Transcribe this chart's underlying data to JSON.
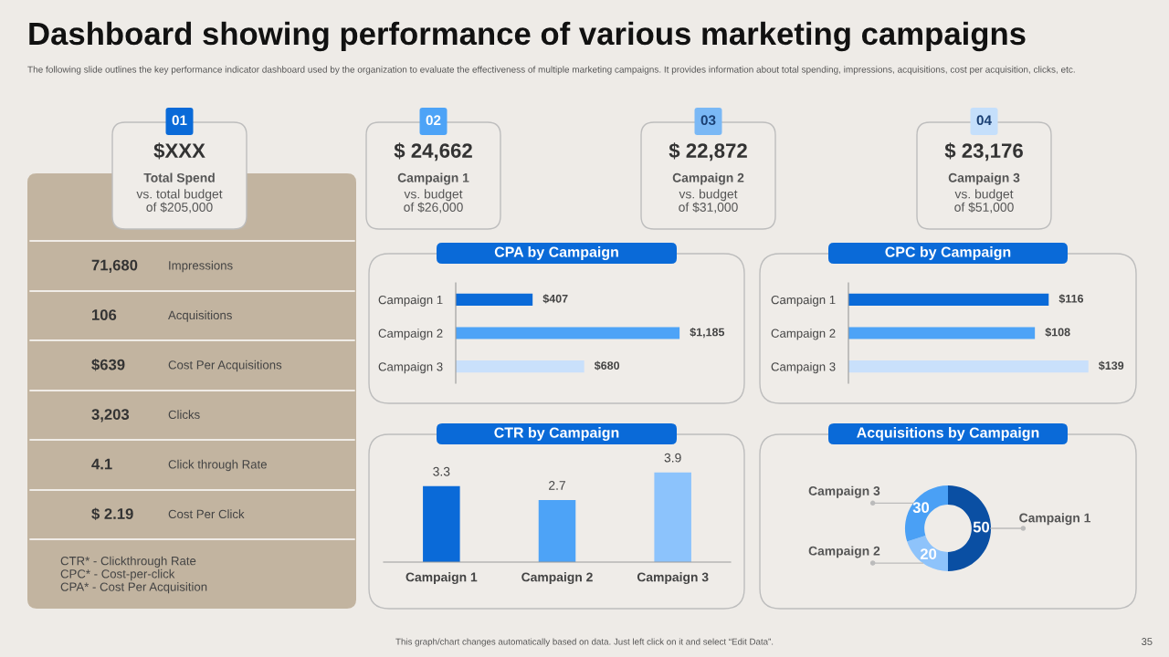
{
  "chart_data": [
    {
      "type": "other",
      "title": "Dashboard showing performance of various marketing campaigns",
      "subtitle": "The following slide outlines the key performance indicator dashboard used by the organization to evaluate the effectiveness of multiple marketing campaigns. It provides information about total spending, impressions, acquisitions, cost per acquisition, clicks, etc.",
      "annotations": [
        "01",
        "$XXX",
        "Total Spend",
        "vs. total budget\nof $205,000",
        "02",
        "$ 24,662",
        "Campaign 1",
        "vs. budget\nof $26,000",
        "03",
        "$ 22,872",
        "Campaign 2",
        "vs. budget\nof $31,000",
        "04",
        "$ 23,176",
        "Campaign 3",
        "vs. budget\nof $51,000",
        "71,680",
        "Impressions",
        "106",
        "Acquisitions",
        "$639",
        "Cost Per Acquisitions",
        "3,203",
        "Clicks",
        "4.1",
        "Click through Rate",
        "$ 2.19",
        "Cost Per Click",
        "CTR* - Clickthrough Rate\nCPC* - Cost-per-click\nCPA* - Cost Per Acquisition",
        "This graph/chart changes automatically based on data. Just left click on it and select “Edit Data”.",
        "35"
      ]
    },
    {
      "type": "bar",
      "orientation": "horizontal",
      "title": "CPA by Campaign",
      "categories": [
        "Campaign 1",
        "Campaign 2",
        "Campaign 3"
      ],
      "values": [
        407,
        1185,
        680
      ],
      "colors": [
        "#0a6ad8",
        "#4da3f7",
        "#c9e0fb"
      ],
      "value_labels": [
        "$407",
        "$1,185",
        "$680"
      ]
    },
    {
      "type": "bar",
      "orientation": "horizontal",
      "title": "CPC by Campaign",
      "categories": [
        "Campaign 1",
        "Campaign 2",
        "Campaign 3"
      ],
      "values": [
        116,
        108,
        139
      ],
      "colors": [
        "#0a6ad8",
        "#4da3f7",
        "#c9e0fb"
      ],
      "value_labels": [
        "$116",
        "$108",
        "$139"
      ]
    },
    {
      "type": "bar",
      "title": "CTR by Campaign",
      "categories": [
        "Campaign 1",
        "Campaign 2",
        "Campaign 3"
      ],
      "values": [
        3.3,
        2.7,
        3.9
      ],
      "colors": [
        "#0a6ad8",
        "#4da3f7",
        "#8cc3fc"
      ],
      "data_labels": true
    },
    {
      "type": "donut",
      "title": "Acquisitions by Campaign",
      "categories": [
        "Campaign 1",
        "Campaign 2",
        "Campaign 3"
      ],
      "values": [
        50,
        20,
        30
      ],
      "colors": [
        "#0a4fa3",
        "#8ec3fb",
        "#4aa0f5"
      ],
      "data_labels": true
    }
  ]
}
